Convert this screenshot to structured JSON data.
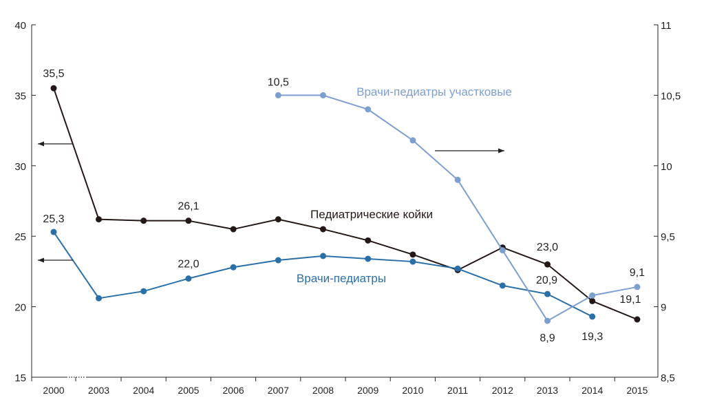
{
  "chart_data": {
    "type": "line",
    "categories": [
      "2000",
      "2003",
      "2004",
      "2005",
      "2006",
      "2007",
      "2008",
      "2009",
      "2010",
      "2011",
      "2012",
      "2013",
      "2014",
      "2015"
    ],
    "y_left": {
      "range": [
        15,
        40
      ],
      "ticks": [
        "15",
        "20",
        "25",
        "30",
        "35",
        "40"
      ]
    },
    "y_right": {
      "range": [
        8.5,
        11
      ],
      "ticks": [
        "8,5",
        "9",
        "9,5",
        "10",
        "10,5",
        "11"
      ]
    },
    "grid": false,
    "series": [
      {
        "name": "Педиатрические койки",
        "axis": "left",
        "color": "#231815",
        "values": [
          35.5,
          26.2,
          26.1,
          26.1,
          25.5,
          26.2,
          25.5,
          24.7,
          23.7,
          22.6,
          24.2,
          23.0,
          20.4,
          19.1
        ]
      },
      {
        "name": "Врачи-педиатры",
        "axis": "left",
        "color": "#2a6fa8",
        "values": [
          25.3,
          20.6,
          21.1,
          22.0,
          22.8,
          23.3,
          23.6,
          23.4,
          23.2,
          22.7,
          21.5,
          20.9,
          19.3,
          null
        ]
      },
      {
        "name": "Врачи-педиатры участковые",
        "axis": "right",
        "color": "#7d9fd0",
        "values": [
          null,
          null,
          null,
          null,
          null,
          10.5,
          10.5,
          10.4,
          10.18,
          9.9,
          9.4,
          8.9,
          9.08,
          9.14
        ]
      }
    ],
    "data_labels": [
      {
        "text": "35,5",
        "series": 0,
        "index": 0
      },
      {
        "text": "26,1",
        "series": 0,
        "index": 3
      },
      {
        "text": "23,0",
        "series": 0,
        "index": 11
      },
      {
        "text": "19,1",
        "series": 0,
        "index": 13
      },
      {
        "text": "25,3",
        "series": 1,
        "index": 0
      },
      {
        "text": "22,0",
        "series": 1,
        "index": 3
      },
      {
        "text": "20,9",
        "series": 1,
        "index": 11
      },
      {
        "text": "19,3",
        "series": 1,
        "index": 12
      },
      {
        "text": "10,5",
        "series": 2,
        "index": 5
      },
      {
        "text": "8,9",
        "series": 2,
        "index": 11
      },
      {
        "text": "9,1",
        "series": 2,
        "index": 13
      }
    ],
    "axis_break_between": [
      "2000",
      "2003"
    ]
  }
}
